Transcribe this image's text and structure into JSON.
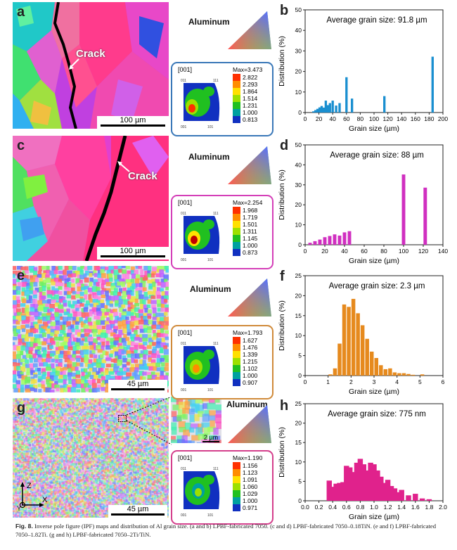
{
  "panels": [
    {
      "map_label": "a",
      "chart_label": "b",
      "scale_bar": "100 µm",
      "crack": "Crack",
      "material": "Aluminum",
      "pf": {
        "title": "[001]",
        "max": "Max=3.473",
        "levels": [
          "2.822",
          "2.293",
          "1.864",
          "1.514",
          "1.231",
          "1.000",
          "0.813"
        ],
        "border": "#3a78b8"
      },
      "chart": {
        "annotation": "Average grain size: 91.8 µm"
      }
    },
    {
      "map_label": "c",
      "chart_label": "d",
      "scale_bar": "100 µm",
      "crack": "Crack",
      "material": "Aluminum",
      "pf": {
        "title": "[001]",
        "max": "Max=2.254",
        "levels": [
          "1.968",
          "1.719",
          "1.501",
          "1.311",
          "1.145",
          "1.000",
          "0.873"
        ],
        "border": "#d43fb8"
      },
      "chart": {
        "annotation": "Average grain size: 88 µm"
      }
    },
    {
      "map_label": "e",
      "chart_label": "f",
      "scale_bar": "45 µm",
      "material": "Aluminum",
      "pf": {
        "title": "[001]",
        "max": "Max=1.793",
        "levels": [
          "1.627",
          "1.476",
          "1.339",
          "1.215",
          "1.102",
          "1.000",
          "0.907"
        ],
        "border": "#d08a3a"
      },
      "chart": {
        "annotation": "Average grain size: 2.3 µm"
      }
    },
    {
      "map_label": "g",
      "chart_label": "h",
      "scale_bar": "45 µm",
      "inset_scale": "2 µm",
      "material": "Aluminum",
      "pf": {
        "title": "[001]",
        "max": "Max=1.190",
        "levels": [
          "1.156",
          "1.123",
          "1.091",
          "1.060",
          "1.029",
          "1.000",
          "0.971"
        ],
        "border": "#d43f8c"
      },
      "chart": {
        "annotation": "Average grain size: 775 nm"
      }
    }
  ],
  "pf_corners": {
    "c011": "011",
    "c111": "111",
    "c001": "001",
    "c101": "101"
  },
  "triad": {
    "z": "Z",
    "x": "X",
    "y": "Y"
  },
  "legend_colors": [
    "#c00000",
    "#ff3000",
    "#ff8c00",
    "#ffe000",
    "#9de000",
    "#20c020",
    "#00a0a0",
    "#1030c0"
  ],
  "chart_data": [
    {
      "type": "bar",
      "title": "",
      "annotation": "Average grain size: 91.8 µm",
      "xlabel": "Grain size (µm)",
      "ylabel": "Distribution (%)",
      "xlim": [
        0,
        200
      ],
      "ylim": [
        0,
        50
      ],
      "xticks": [
        0,
        20,
        40,
        60,
        80,
        100,
        120,
        140,
        160,
        180,
        200
      ],
      "yticks": [
        0,
        10,
        20,
        30,
        40,
        50
      ],
      "color": "#1a8fd0",
      "x": [
        12,
        15,
        18,
        21,
        24,
        27,
        30,
        33,
        36,
        40,
        45,
        50,
        60,
        68,
        115,
        185
      ],
      "values": [
        0.6,
        1.2,
        1.8,
        2.5,
        3.2,
        2.4,
        5.8,
        3.6,
        4.6,
        5.8,
        3.4,
        4.6,
        17.2,
        6.8,
        8.0,
        27.2
      ]
    },
    {
      "type": "bar",
      "title": "",
      "annotation": "Average grain size: 88 µm",
      "xlabel": "Grain size (µm)",
      "ylabel": "Distribution (%)",
      "xlim": [
        0,
        140
      ],
      "ylim": [
        0,
        50
      ],
      "xticks": [
        0,
        20,
        40,
        60,
        80,
        100,
        120,
        140
      ],
      "yticks": [
        0,
        10,
        20,
        30,
        40,
        50
      ],
      "color": "#d02fc0",
      "x": [
        5,
        10,
        15,
        20,
        25,
        30,
        35,
        40,
        45,
        100,
        122
      ],
      "values": [
        1.0,
        1.8,
        2.6,
        3.8,
        4.4,
        5.2,
        4.6,
        6.2,
        6.8,
        35.2,
        28.6
      ]
    },
    {
      "type": "bar",
      "title": "",
      "annotation": "Average grain size: 2.3 µm",
      "xlabel": "Grain size (µm)",
      "ylabel": "Distribution (%)",
      "xlim": [
        0,
        6
      ],
      "ylim": [
        0,
        25
      ],
      "xticks": [
        0,
        1,
        2,
        3,
        4,
        5,
        6
      ],
      "yticks": [
        0,
        5,
        10,
        15,
        20,
        25
      ],
      "color": "#e68a1e",
      "x": [
        1.1,
        1.3,
        1.5,
        1.7,
        1.9,
        2.1,
        2.3,
        2.5,
        2.7,
        2.9,
        3.1,
        3.3,
        3.5,
        3.7,
        3.9,
        4.1,
        4.3,
        4.5,
        4.7,
        5.1
      ],
      "values": [
        0.3,
        1.8,
        8.0,
        17.8,
        17.2,
        19.2,
        15.6,
        12.6,
        9.2,
        6.0,
        4.4,
        2.6,
        1.6,
        1.8,
        0.8,
        0.6,
        0.6,
        0.4,
        0.2,
        0.3
      ]
    },
    {
      "type": "bar",
      "title": "",
      "annotation": "Average grain size: 775 nm",
      "xlabel": "Grain size (µm)",
      "ylabel": "Distribution (%)",
      "xlim": [
        0,
        2.0
      ],
      "ylim": [
        0,
        25
      ],
      "xticks": [
        0.0,
        0.2,
        0.4,
        0.6,
        0.8,
        1.0,
        1.2,
        1.4,
        1.6,
        1.8,
        2.0
      ],
      "yticks": [
        0,
        5,
        10,
        15,
        20,
        25
      ],
      "color": "#e0228c",
      "x": [
        0.35,
        0.4,
        0.45,
        0.5,
        0.55,
        0.6,
        0.65,
        0.7,
        0.75,
        0.8,
        0.85,
        0.9,
        0.95,
        1.0,
        1.05,
        1.1,
        1.15,
        1.2,
        1.25,
        1.3,
        1.35,
        1.4,
        1.5,
        1.6,
        1.7,
        1.8
      ],
      "values": [
        5.2,
        3.6,
        4.4,
        4.6,
        4.8,
        9.0,
        8.6,
        7.4,
        9.8,
        10.8,
        9.4,
        7.8,
        9.8,
        9.4,
        7.8,
        6.2,
        4.6,
        5.4,
        3.8,
        3.2,
        2.2,
        2.8,
        1.4,
        1.8,
        0.6,
        0.4
      ]
    }
  ],
  "caption": {
    "label": "Fig. 8.",
    "text": "Inverse pole figure (IPF) maps and distribution of Al grain size. (a and b) LPBF-fabricated 7050. (c and d) LPBF-fabricated 7050–0.18TiN. (e and f) LPBF-fabricated 7050–1.82Ti. (g and h) LPBF-fabricated 7050–2Ti/TiN."
  }
}
